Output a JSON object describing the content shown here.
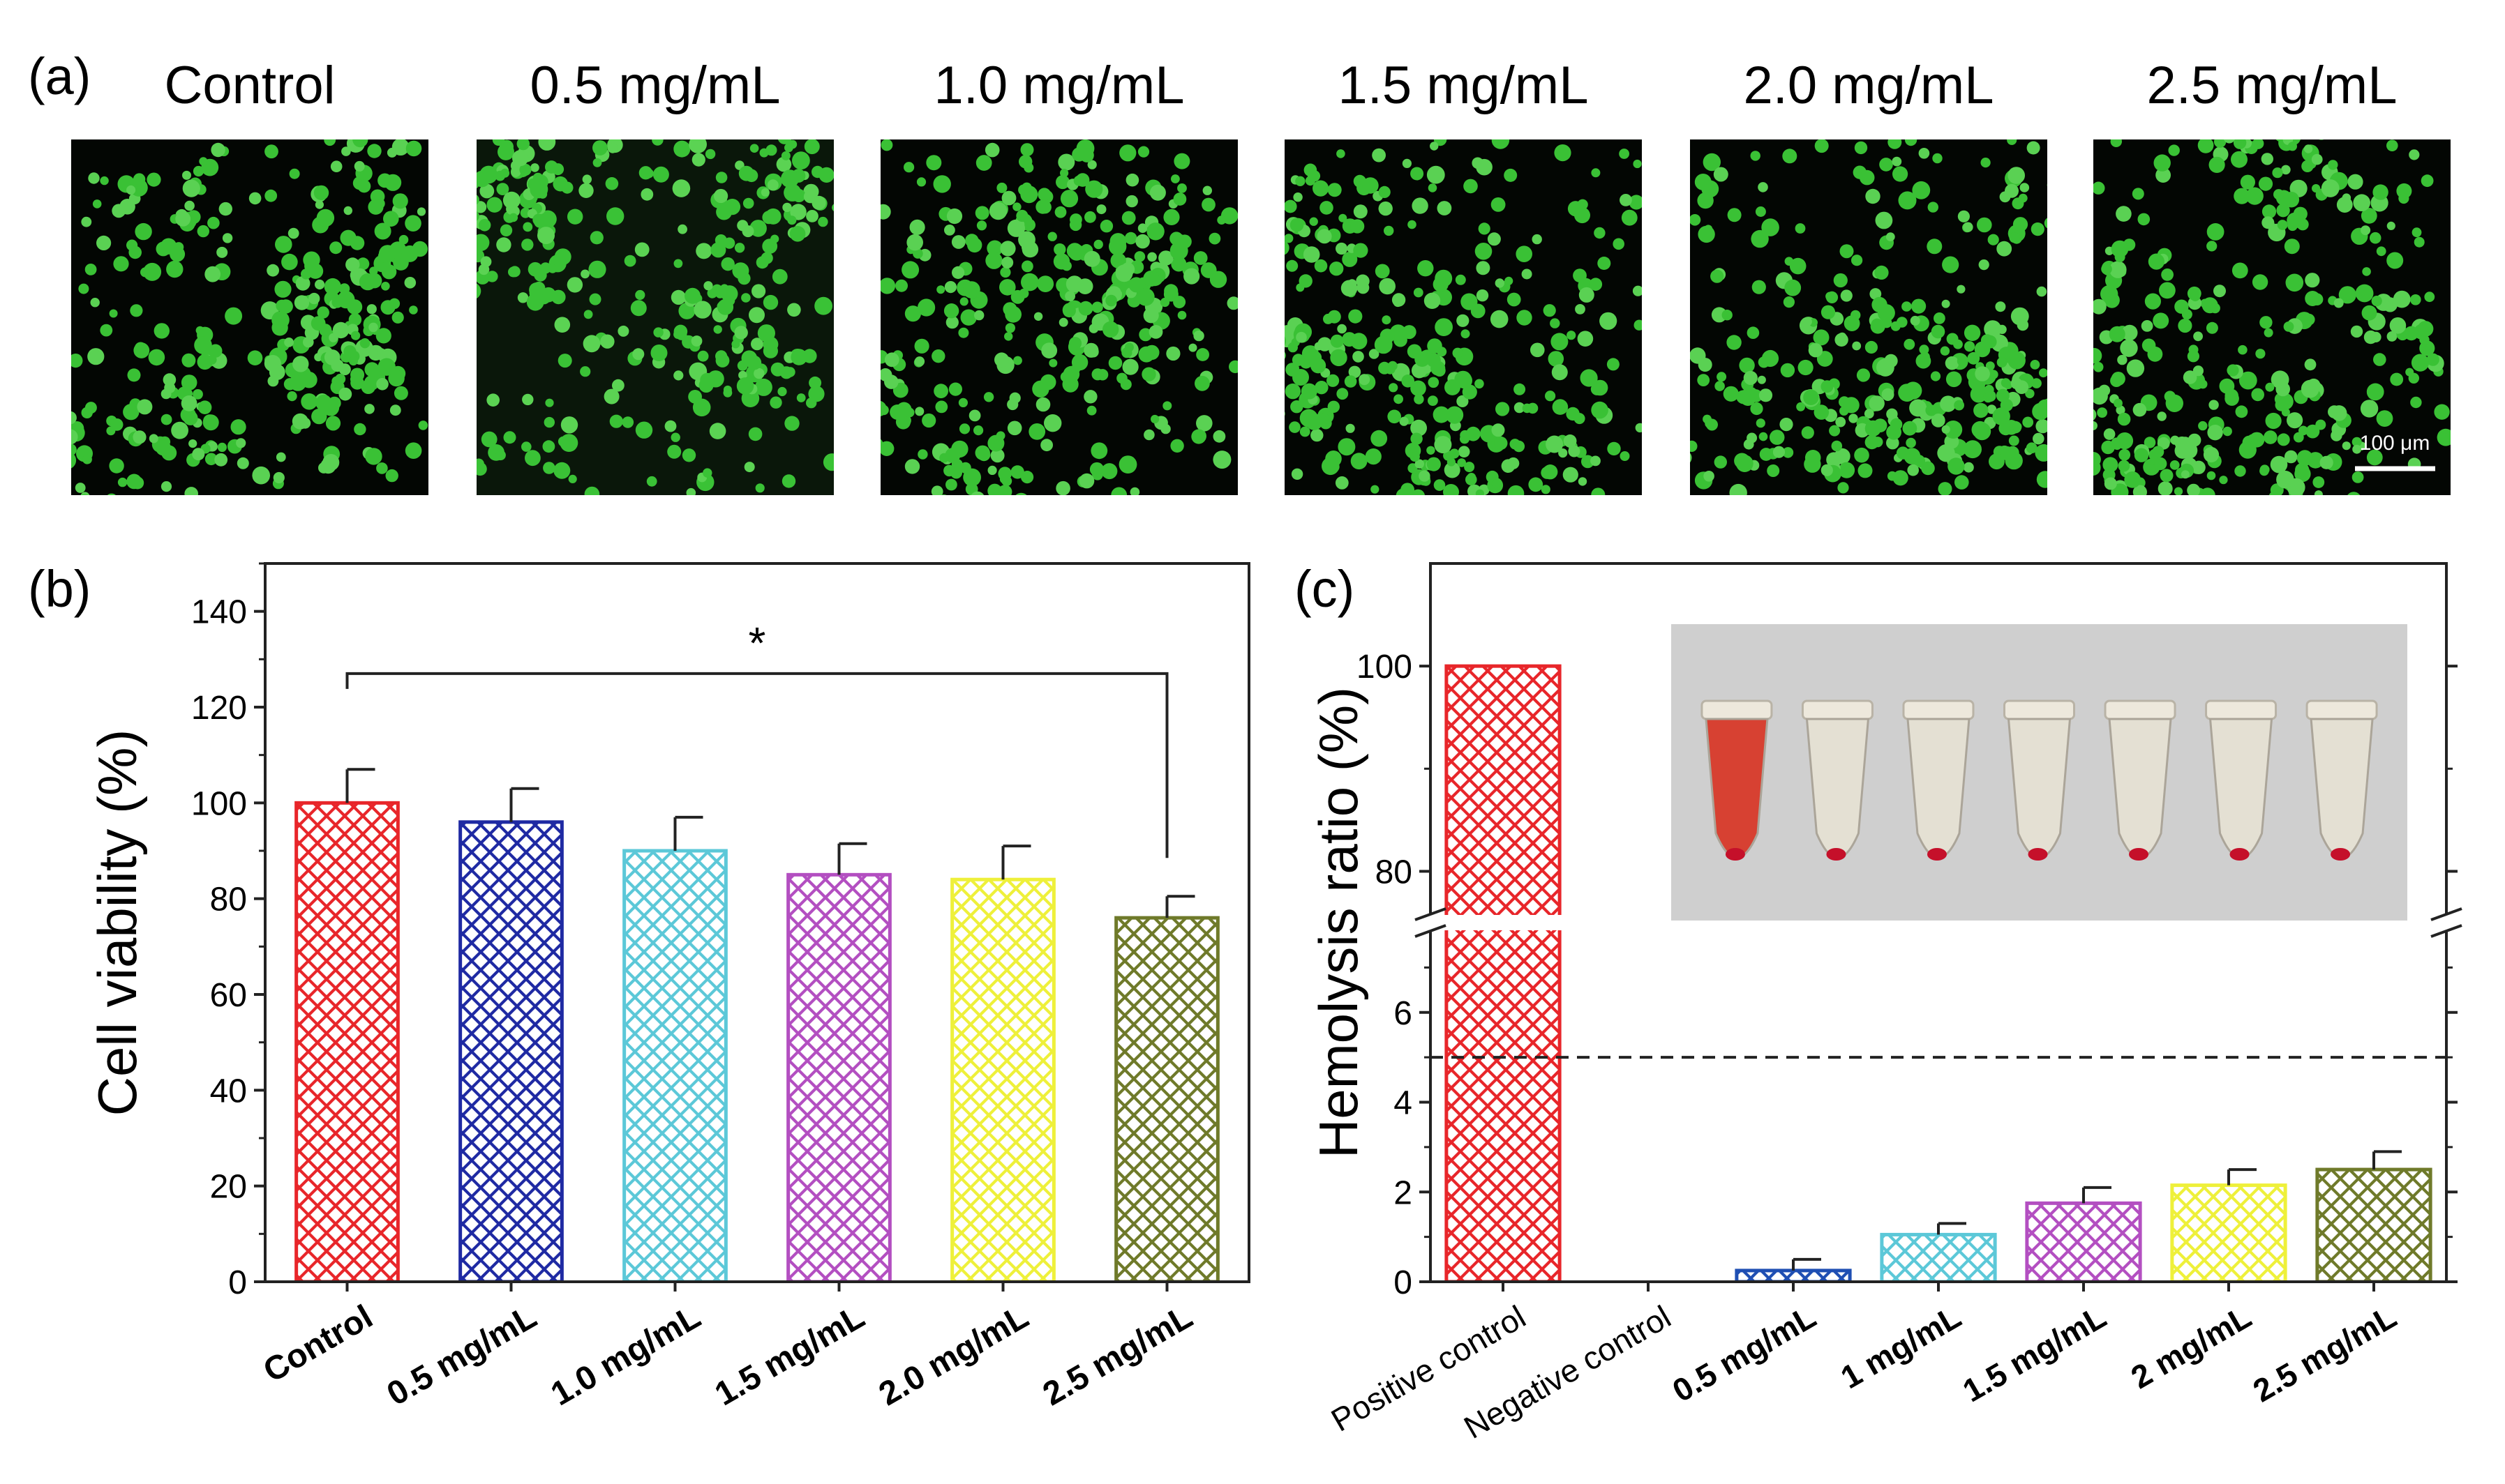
{
  "panel_a": {
    "label": "(a)",
    "images": [
      {
        "title": "Control"
      },
      {
        "title": "0.5 mg/mL"
      },
      {
        "title": "1.0 mg/mL"
      },
      {
        "title": "1.5 mg/mL"
      },
      {
        "title": "2.0 mg/mL"
      },
      {
        "title": "2.5 mg/mL"
      }
    ],
    "scale_bar_label": "100 μm",
    "cell_color": "#3fd13a"
  },
  "chart_data": [
    {
      "panel_label": "(b)",
      "type": "bar",
      "categories": [
        "Control",
        "0.5 mg/mL",
        "1.0 mg/mL",
        "1.5 mg/mL",
        "2.0 mg/mL",
        "2.5 mg/mL"
      ],
      "values": [
        100,
        96,
        90,
        85,
        84,
        76
      ],
      "errors": [
        7,
        7,
        7,
        6.5,
        7,
        4.5
      ],
      "colors": [
        "#e8262a",
        "#1f2aa3",
        "#5cc8d8",
        "#b34fc1",
        "#eef03a",
        "#6f7a2a"
      ],
      "xlabel": "",
      "ylabel": "Cell viability (%)",
      "ylim": [
        0,
        150
      ],
      "yticks": [
        0,
        20,
        40,
        60,
        80,
        100,
        120,
        140
      ],
      "significance": {
        "from": 0,
        "to": 5,
        "label": "*",
        "y": 127
      },
      "grid": false
    },
    {
      "panel_label": "(c)",
      "type": "bar",
      "categories": [
        "Positive control",
        "Negative control",
        "0.5 mg/mL",
        "1 mg/mL",
        "1.5 mg/mL",
        "2 mg/mL",
        "2.5 mg/mL"
      ],
      "values": [
        100,
        0,
        0.25,
        1.05,
        1.75,
        2.15,
        2.5
      ],
      "errors": [
        0,
        0,
        0.25,
        0.25,
        0.35,
        0.35,
        0.4
      ],
      "colors": [
        "#e8262a",
        "#1f2aa3",
        "#1f4fb3",
        "#5cc8d8",
        "#b34fc1",
        "#eef03a",
        "#6f7a2a"
      ],
      "xlabel": "",
      "ylabel": "Hemolysis ratio (%)",
      "axis_break": {
        "lower": [
          0,
          8
        ],
        "upper": [
          75,
          110
        ]
      },
      "yticks_lower": [
        0,
        2,
        4,
        6
      ],
      "yticks_upper": [
        80,
        100
      ],
      "threshold_line": 5,
      "grid": false
    }
  ],
  "panel_c_photo": {
    "tube_count": 7,
    "first_tube_fill": "#d83a2a",
    "pellet_color": "#c5102a",
    "background": "#cfcfcf"
  }
}
